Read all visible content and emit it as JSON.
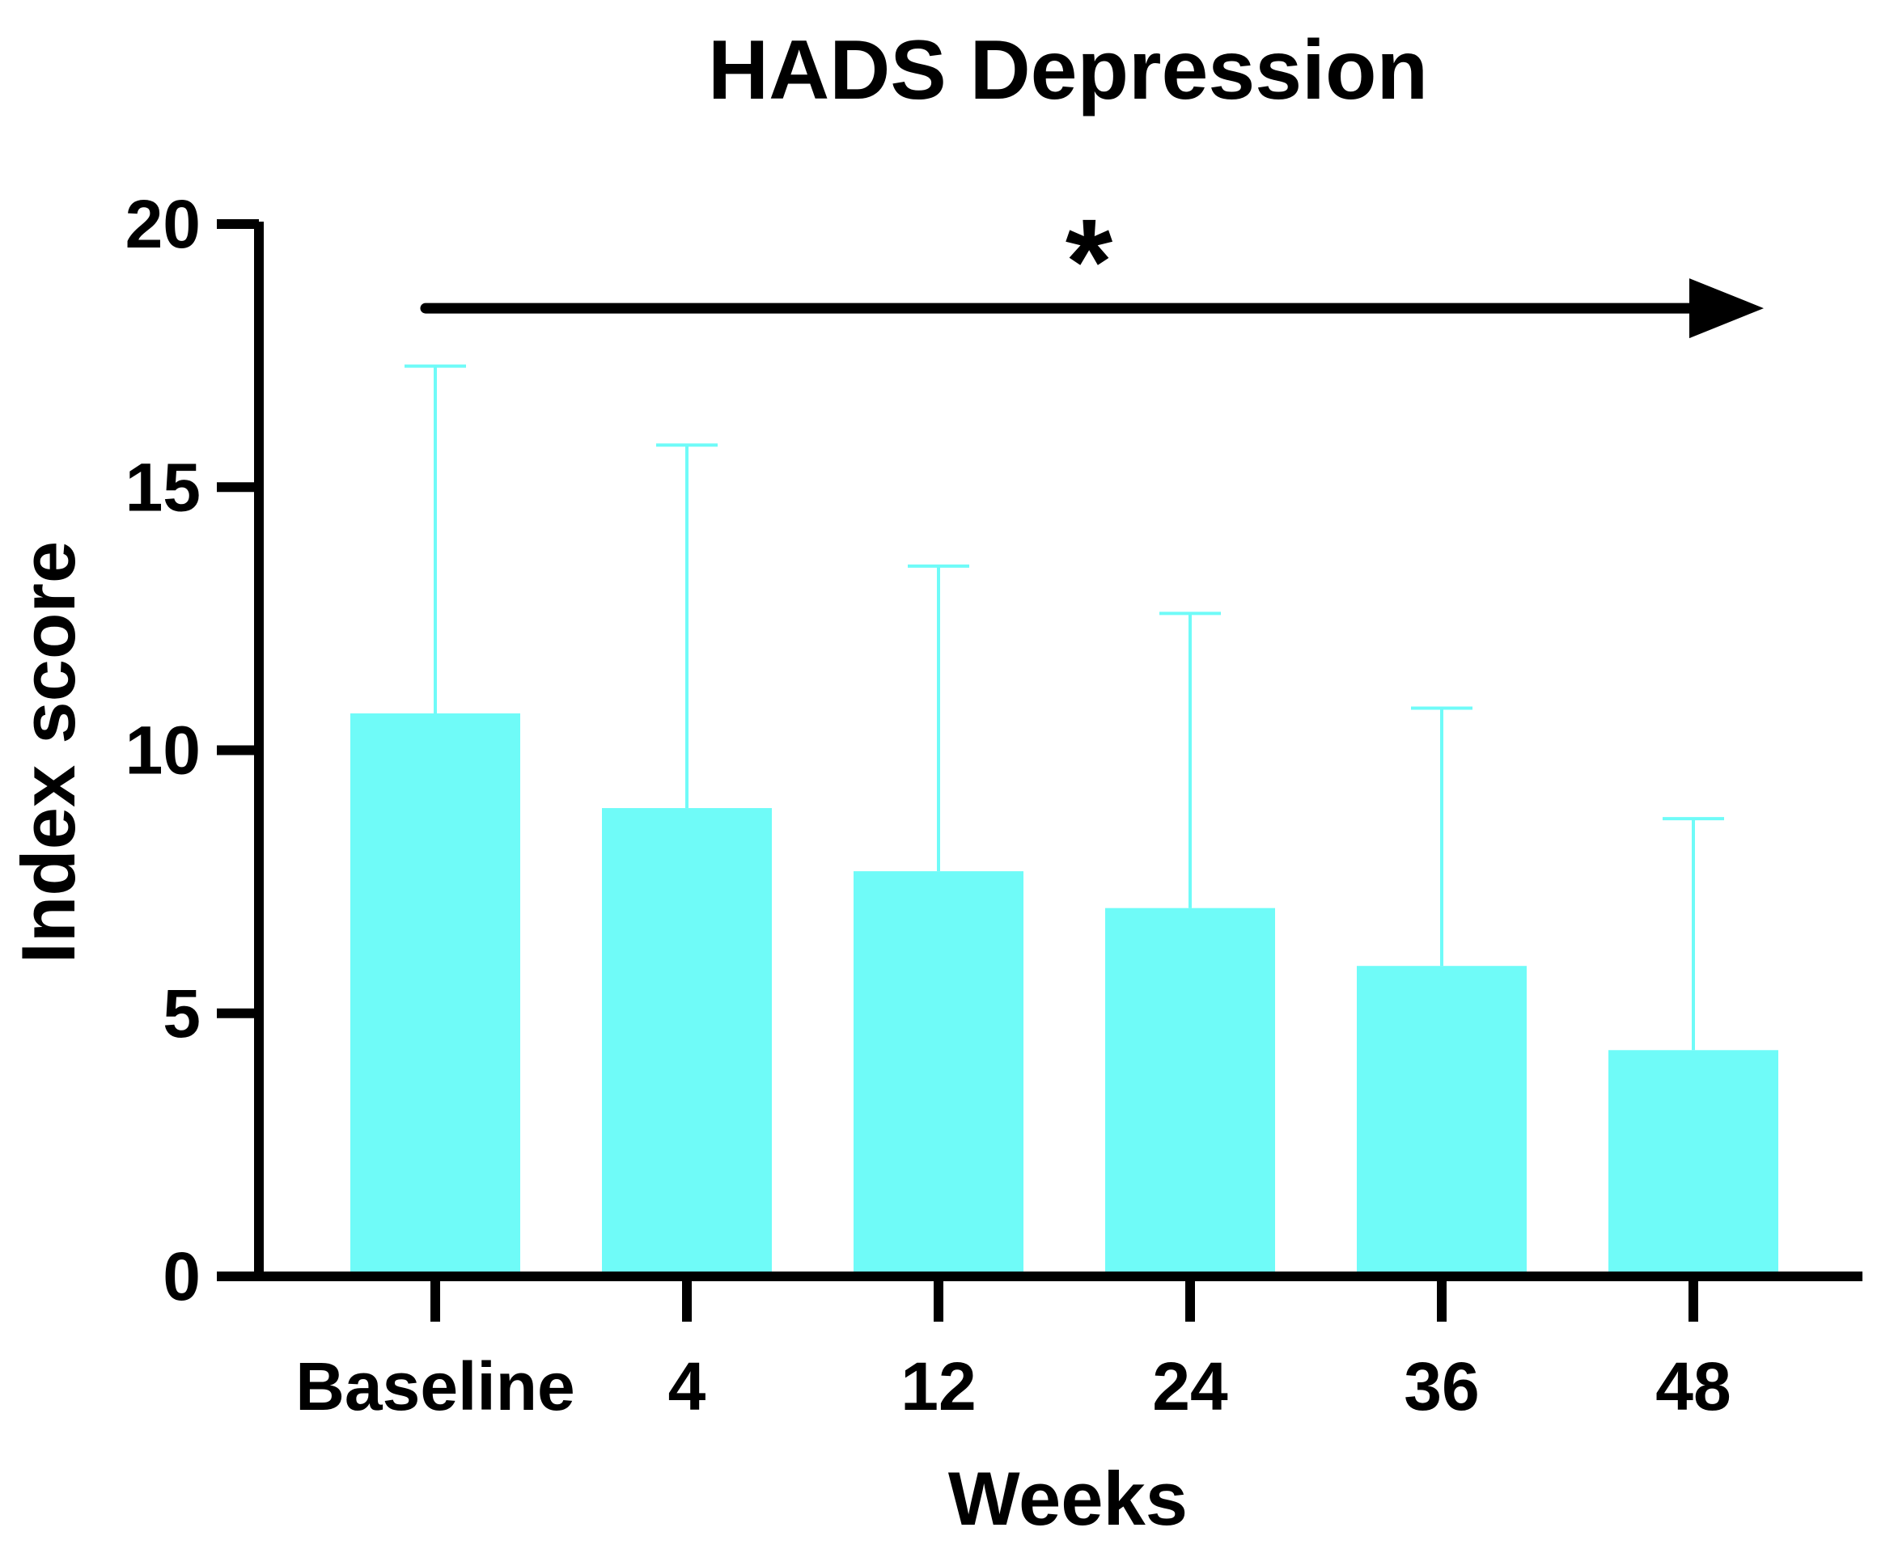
{
  "chart_data": {
    "type": "bar",
    "title": "HADS Depression",
    "xlabel": "Weeks",
    "ylabel": "Index score",
    "categories": [
      "Baseline",
      "4",
      "12",
      "24",
      "36",
      "48"
    ],
    "values": [
      10.7,
      8.9,
      7.7,
      7.0,
      5.9,
      4.3
    ],
    "error_upper": [
      17.3,
      15.8,
      13.5,
      12.6,
      10.8,
      8.7
    ],
    "ylim": [
      0,
      20
    ],
    "yticks": [
      0,
      5,
      10,
      15,
      20
    ],
    "ytick_labels": [
      "0",
      "5",
      "10",
      "15",
      "20"
    ],
    "bar_color": "#6ffbf8",
    "axis_color": "#000000",
    "annotation": {
      "text": "*",
      "arrow_from": "Baseline",
      "arrow_to": "48",
      "arrow_y": 18.4
    },
    "grid": false,
    "legend": "none"
  }
}
